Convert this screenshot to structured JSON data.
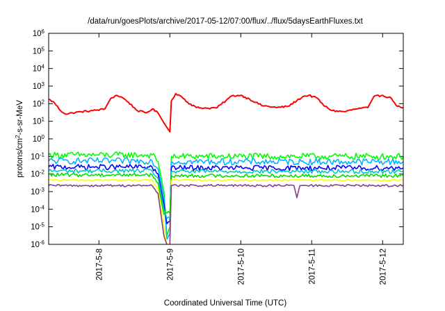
{
  "chart_data": {
    "type": "line",
    "title": "/data/run/goesPlots/archive/2017-05-12/07:00/flux/../flux/5daysEarthFluxes.txt",
    "xlabel": "Coordinated Universal Time (UTC)",
    "ylabel_prefix": "protons/cm",
    "ylabel_exponent": "2",
    "ylabel_suffix": "-s-sr-MeV",
    "y_scale": "log",
    "ylim": [
      1e-06,
      1000000.0
    ],
    "y_ticks": [
      {
        "value": 1e-06,
        "base": "10",
        "exp": "-6"
      },
      {
        "value": 1e-05,
        "base": "10",
        "exp": "-5"
      },
      {
        "value": 0.0001,
        "base": "10",
        "exp": "-4"
      },
      {
        "value": 0.001,
        "base": "10",
        "exp": "-3"
      },
      {
        "value": 0.01,
        "base": "10",
        "exp": "-2"
      },
      {
        "value": 0.1,
        "base": "10",
        "exp": "-1"
      },
      {
        "value": 1,
        "base": "10",
        "exp": "0"
      },
      {
        "value": 10,
        "base": "10",
        "exp": "1"
      },
      {
        "value": 100,
        "base": "10",
        "exp": "2"
      },
      {
        "value": 1000,
        "base": "10",
        "exp": "3"
      },
      {
        "value": 10000,
        "base": "10",
        "exp": "4"
      },
      {
        "value": 100000,
        "base": "10",
        "exp": "5"
      },
      {
        "value": 1000000,
        "base": "10",
        "exp": "6"
      }
    ],
    "xlim": [
      "2017-05-07 07:00",
      "2017-05-12 07:00"
    ],
    "x_ticks": [
      {
        "value": "2017-05-08 00:00",
        "label": "2017-5-8"
      },
      {
        "value": "2017-05-09 00:00",
        "label": "2017-5-9"
      },
      {
        "value": "2017-05-10 00:00",
        "label": "2017-5-10"
      },
      {
        "value": "2017-05-11 00:00",
        "label": "2017-5-11"
      },
      {
        "value": "2017-05-12 00:00",
        "label": "2017-5-12"
      }
    ],
    "grid": false,
    "legend": "none",
    "series": [
      {
        "color": "#ff0000",
        "noise": 0.05,
        "points": [
          [
            "2017-05-07 07:00",
            180
          ],
          [
            "2017-05-07 09:00",
            110
          ],
          [
            "2017-05-07 11:00",
            40
          ],
          [
            "2017-05-07 13:00",
            25
          ],
          [
            "2017-05-07 15:00",
            30
          ],
          [
            "2017-05-07 18:00",
            35
          ],
          [
            "2017-05-07 22:00",
            40
          ],
          [
            "2017-05-08 02:00",
            50
          ],
          [
            "2017-05-08 04:00",
            200
          ],
          [
            "2017-05-08 06:00",
            300
          ],
          [
            "2017-05-08 08:00",
            220
          ],
          [
            "2017-05-08 10:00",
            120
          ],
          [
            "2017-05-08 13:00",
            40
          ],
          [
            "2017-05-08 16:00",
            30
          ],
          [
            "2017-05-08 18:00",
            50
          ],
          [
            "2017-05-08 20:00",
            30
          ],
          [
            "2017-05-08 22:00",
            8
          ],
          [
            "2017-05-09 00:00",
            2.5
          ],
          [
            "2017-05-09 00:30",
            140
          ],
          [
            "2017-05-09 02:00",
            380
          ],
          [
            "2017-05-09 04:00",
            250
          ],
          [
            "2017-05-09 06:00",
            120
          ],
          [
            "2017-05-09 09:00",
            60
          ],
          [
            "2017-05-09 13:00",
            55
          ],
          [
            "2017-05-09 16:00",
            60
          ],
          [
            "2017-05-09 19:00",
            150
          ],
          [
            "2017-05-09 21:00",
            280
          ],
          [
            "2017-05-10 00:00",
            300
          ],
          [
            "2017-05-10 03:00",
            180
          ],
          [
            "2017-05-10 07:00",
            80
          ],
          [
            "2017-05-10 12:00",
            60
          ],
          [
            "2017-05-10 16:00",
            70
          ],
          [
            "2017-05-10 19:00",
            150
          ],
          [
            "2017-05-10 21:00",
            250
          ],
          [
            "2017-05-10 23:00",
            300
          ],
          [
            "2017-05-11 02:00",
            200
          ],
          [
            "2017-05-11 04:00",
            80
          ],
          [
            "2017-05-11 07:00",
            40
          ],
          [
            "2017-05-11 11:00",
            35
          ],
          [
            "2017-05-11 15:00",
            50
          ],
          [
            "2017-05-11 19:00",
            60
          ],
          [
            "2017-05-11 21:00",
            250
          ],
          [
            "2017-05-12 00:00",
            300
          ],
          [
            "2017-05-12 03:00",
            200
          ],
          [
            "2017-05-12 05:00",
            70
          ],
          [
            "2017-05-12 07:00",
            60
          ]
        ]
      },
      {
        "color": "#00ff00",
        "noise": 0.18,
        "points": [
          [
            "2017-05-07 07:00",
            0.12
          ],
          [
            "2017-05-08 18:00",
            0.12
          ],
          [
            "2017-05-08 20:00",
            0.05
          ],
          [
            "2017-05-08 22:00",
            0.001
          ],
          [
            "2017-05-08 23:00",
            3e-06
          ],
          [
            "2017-05-09 00:00",
            1e-05
          ],
          [
            "2017-05-09 00:30",
            0.1
          ],
          [
            "2017-05-12 07:00",
            0.1
          ]
        ]
      },
      {
        "color": "#00b4ff",
        "noise": 0.18,
        "points": [
          [
            "2017-05-07 07:00",
            0.055
          ],
          [
            "2017-05-08 18:00",
            0.055
          ],
          [
            "2017-05-08 20:00",
            0.02
          ],
          [
            "2017-05-08 22:00",
            0.0005
          ],
          [
            "2017-05-08 23:00",
            2e-06
          ],
          [
            "2017-05-09 00:00",
            4e-06
          ],
          [
            "2017-05-09 00:30",
            0.05
          ],
          [
            "2017-05-12 07:00",
            0.05
          ]
        ]
      },
      {
        "color": "#0000ff",
        "noise": 0.15,
        "points": [
          [
            "2017-05-07 07:00",
            0.025
          ],
          [
            "2017-05-08 18:00",
            0.025
          ],
          [
            "2017-05-08 20:00",
            0.01
          ],
          [
            "2017-05-08 22:00",
            0.0002
          ],
          [
            "2017-05-08 23:00",
            1.5e-05
          ],
          [
            "2017-05-09 00:00",
            2e-05
          ],
          [
            "2017-05-09 00:30",
            0.022
          ],
          [
            "2017-05-12 07:00",
            0.022
          ]
        ]
      },
      {
        "color": "#00c8c8",
        "noise": 0.12,
        "points": [
          [
            "2017-05-07 07:00",
            0.015
          ],
          [
            "2017-05-08 18:00",
            0.015
          ],
          [
            "2017-05-08 20:00",
            0.006
          ],
          [
            "2017-05-08 22:00",
            0.0001
          ],
          [
            "2017-05-08 23:00",
            3e-05
          ],
          [
            "2017-05-09 00:00",
            3e-05
          ],
          [
            "2017-05-09 00:30",
            0.014
          ],
          [
            "2017-05-12 07:00",
            0.014
          ]
        ]
      },
      {
        "color": "#00e000",
        "noise": 0.1,
        "points": [
          [
            "2017-05-07 07:00",
            0.009
          ],
          [
            "2017-05-08 18:00",
            0.009
          ],
          [
            "2017-05-08 20:00",
            0.003
          ],
          [
            "2017-05-08 22:00",
            5e-05
          ],
          [
            "2017-05-08 23:00",
            6e-05
          ],
          [
            "2017-05-09 00:00",
            6e-05
          ],
          [
            "2017-05-09 00:30",
            0.008
          ],
          [
            "2017-05-12 07:00",
            0.008
          ]
        ]
      },
      {
        "color": "#ffff00",
        "noise": 0.05,
        "points": [
          [
            "2017-05-07 07:00",
            0.0045
          ],
          [
            "2017-05-08 18:00",
            0.0045
          ],
          [
            "2017-05-08 20:00",
            0.0015
          ],
          [
            "2017-05-08 22:00",
            1e-05
          ],
          [
            "2017-05-08 23:00",
            1e-06
          ],
          [
            "2017-05-09 00:00",
            1e-06
          ],
          [
            "2017-05-09 00:30",
            0.0045
          ],
          [
            "2017-05-12 07:00",
            0.0045
          ]
        ]
      },
      {
        "color": "#8b3a8b",
        "noise": 0.06,
        "points": [
          [
            "2017-05-07 07:00",
            0.0022
          ],
          [
            "2017-05-08 18:00",
            0.0022
          ],
          [
            "2017-05-08 20:00",
            0.0008
          ],
          [
            "2017-05-08 22:00",
            3e-06
          ],
          [
            "2017-05-08 23:00",
            1e-06
          ],
          [
            "2017-05-09 00:00",
            1e-06
          ],
          [
            "2017-05-09 00:30",
            0.0022
          ],
          [
            "2017-05-10 18:00",
            0.0022
          ],
          [
            "2017-05-10 19:00",
            0.00045
          ],
          [
            "2017-05-10 20:00",
            0.0022
          ],
          [
            "2017-05-12 07:00",
            0.0022
          ]
        ]
      }
    ]
  }
}
